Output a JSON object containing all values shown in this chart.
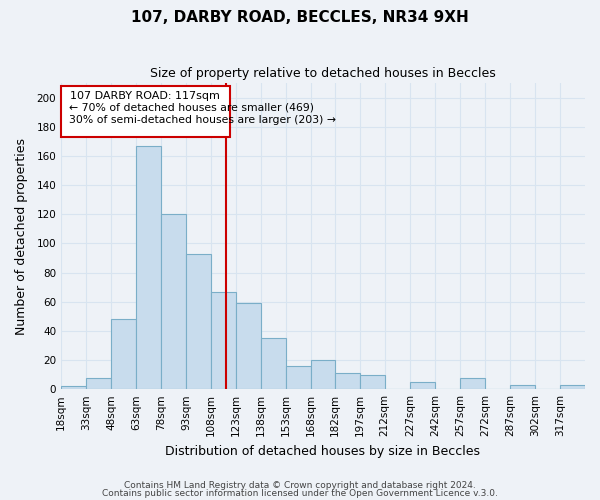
{
  "title": "107, DARBY ROAD, BECCLES, NR34 9XH",
  "subtitle": "Size of property relative to detached houses in Beccles",
  "xlabel": "Distribution of detached houses by size in Beccles",
  "ylabel": "Number of detached properties",
  "bar_labels": [
    "18sqm",
    "33sqm",
    "48sqm",
    "63sqm",
    "78sqm",
    "93sqm",
    "108sqm",
    "123sqm",
    "138sqm",
    "153sqm",
    "168sqm",
    "182sqm",
    "197sqm",
    "212sqm",
    "227sqm",
    "242sqm",
    "257sqm",
    "272sqm",
    "287sqm",
    "302sqm",
    "317sqm"
  ],
  "bar_values": [
    2,
    8,
    48,
    167,
    120,
    93,
    67,
    59,
    35,
    16,
    20,
    11,
    10,
    0,
    5,
    0,
    8,
    0,
    3,
    0,
    3
  ],
  "bar_edges": [
    18,
    33,
    48,
    63,
    78,
    93,
    108,
    123,
    138,
    153,
    168,
    182,
    197,
    212,
    227,
    242,
    257,
    272,
    287,
    302,
    317,
    332
  ],
  "bar_color": "#c8dced",
  "bar_edge_color": "#7aaec8",
  "vline_x": 117,
  "vline_color": "#cc0000",
  "ylim": [
    0,
    210
  ],
  "yticks": [
    0,
    20,
    40,
    60,
    80,
    100,
    120,
    140,
    160,
    180,
    200
  ],
  "annotation_title": "107 DARBY ROAD: 117sqm",
  "annotation_line1": "← 70% of detached houses are smaller (469)",
  "annotation_line2": "30% of semi-detached houses are larger (203) →",
  "box_color": "#ffffff",
  "box_edge_color": "#cc0000",
  "footer1": "Contains HM Land Registry data © Crown copyright and database right 2024.",
  "footer2": "Contains public sector information licensed under the Open Government Licence v.3.0.",
  "background_color": "#eef2f7",
  "grid_color": "#d8e4f0"
}
